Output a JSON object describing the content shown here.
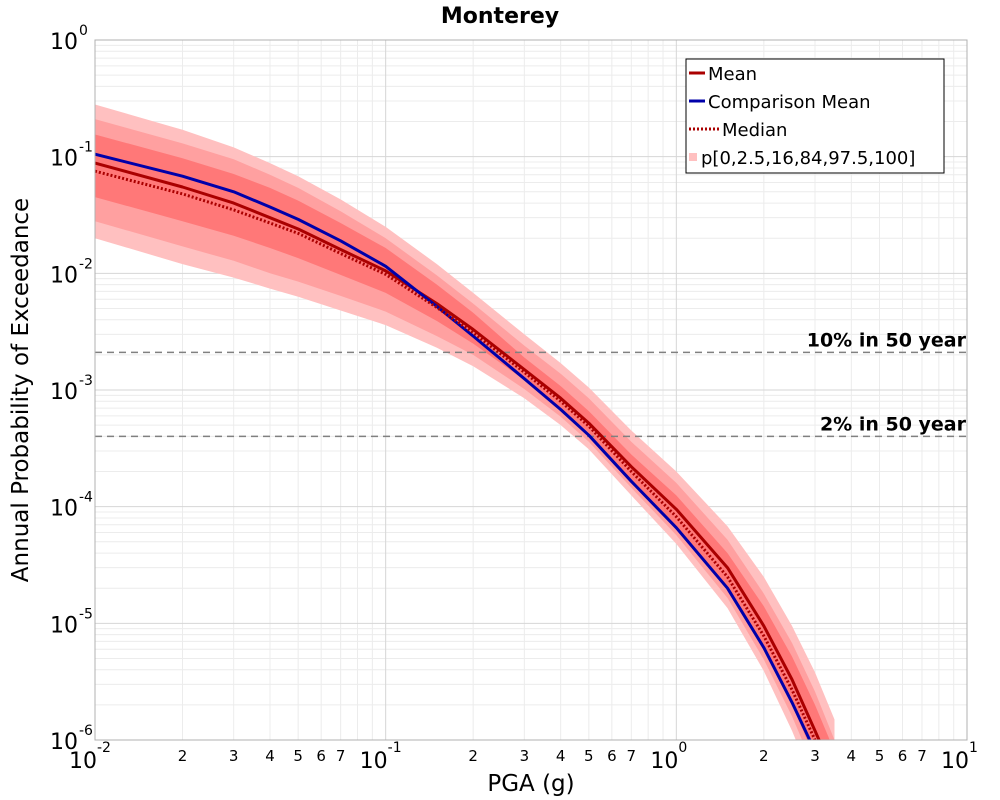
{
  "chart_data": {
    "type": "line",
    "title": "Monterey",
    "xlabel": "PGA (g)",
    "ylabel": "Annual Probability of Exceedance",
    "xscale": "log",
    "yscale": "log",
    "xlim": [
      0.01,
      10
    ],
    "ylim": [
      1e-06,
      1
    ],
    "grid": true,
    "legend_position": "top-right",
    "x_major_ticks": [
      {
        "value": 0.01,
        "base": "10",
        "exp": "-2"
      },
      {
        "value": 0.1,
        "base": "10",
        "exp": "-1"
      },
      {
        "value": 1,
        "base": "10",
        "exp": "0"
      },
      {
        "value": 10,
        "base": "10",
        "exp": "1"
      }
    ],
    "x_minor_tick_labels": [
      "2",
      "3",
      "4",
      "5",
      "6",
      "7"
    ],
    "y_major_ticks": [
      {
        "value": 1,
        "base": "10",
        "exp": "0"
      },
      {
        "value": 0.1,
        "base": "10",
        "exp": "-1"
      },
      {
        "value": 0.01,
        "base": "10",
        "exp": "-2"
      },
      {
        "value": 0.001,
        "base": "10",
        "exp": "-3"
      },
      {
        "value": 0.0001,
        "base": "10",
        "exp": "-4"
      },
      {
        "value": 1e-05,
        "base": "10",
        "exp": "-5"
      },
      {
        "value": 1e-06,
        "base": "10",
        "exp": "-6"
      }
    ],
    "x": [
      0.01,
      0.02,
      0.03,
      0.04,
      0.05,
      0.07,
      0.1,
      0.15,
      0.2,
      0.3,
      0.4,
      0.5,
      0.7,
      1.0,
      1.5,
      2.0,
      2.5,
      3.0,
      3.5
    ],
    "series": [
      {
        "name": "Mean",
        "color": "#aa0000",
        "style": "solid",
        "values": [
          0.088,
          0.055,
          0.04,
          0.03,
          0.024,
          0.016,
          0.0105,
          0.0055,
          0.0033,
          0.0015,
          0.00085,
          0.00052,
          0.00022,
          9.5e-05,
          3e-05,
          9.5e-06,
          3.3e-06,
          1.2e-06,
          5e-07
        ]
      },
      {
        "name": "Comparison Mean",
        "color": "#0000aa",
        "style": "solid",
        "values": [
          0.105,
          0.068,
          0.05,
          0.037,
          0.029,
          0.019,
          0.0115,
          0.0052,
          0.0029,
          0.00125,
          0.00068,
          0.00041,
          0.000165,
          6.6e-05,
          2e-05,
          6.2e-06,
          2.1e-06,
          8e-07,
          3e-07
        ]
      },
      {
        "name": "Median",
        "color": "#aa0000",
        "style": "dotted",
        "values": [
          0.075,
          0.048,
          0.035,
          0.027,
          0.022,
          0.0148,
          0.0098,
          0.0051,
          0.0031,
          0.00142,
          0.0008,
          0.00049,
          0.0002,
          8.2e-05,
          2.5e-05,
          7.8e-06,
          2.7e-06,
          1e-06,
          4e-07
        ]
      }
    ],
    "bands": {
      "name": "p[0,2.5,16,84,97.5,100]",
      "outer": {
        "color": "#ffc0c0",
        "lower": [
          0.02,
          0.012,
          0.0092,
          0.0074,
          0.0063,
          0.0048,
          0.0036,
          0.0023,
          0.0016,
          0.00085,
          0.0005,
          0.00031,
          0.000125,
          4.8e-05,
          1.35e-05,
          3.9e-06,
          1.2e-06,
          4e-07,
          1.4e-07
        ],
        "upper": [
          0.28,
          0.17,
          0.12,
          0.088,
          0.068,
          0.043,
          0.025,
          0.012,
          0.0068,
          0.003,
          0.0017,
          0.00105,
          0.00045,
          0.0002,
          6.8e-05,
          2.5e-05,
          9.5e-06,
          3.8e-06,
          1.5e-06
        ]
      },
      "mid": {
        "color": "#ffa0a0",
        "lower": [
          0.028,
          0.017,
          0.0128,
          0.01,
          0.0085,
          0.0064,
          0.0047,
          0.0029,
          0.002,
          0.00102,
          0.00059,
          0.00036,
          0.000145,
          5.7e-05,
          1.65e-05,
          4.9e-06,
          1.6e-06,
          5.5e-07,
          2e-07
        ],
        "upper": [
          0.21,
          0.13,
          0.095,
          0.07,
          0.054,
          0.034,
          0.02,
          0.0096,
          0.0055,
          0.0024,
          0.00138,
          0.00085,
          0.00036,
          0.00016,
          5.2e-05,
          1.8e-05,
          6.8e-06,
          2.6e-06,
          1e-06
        ]
      },
      "inner": {
        "color": "#ff7878",
        "lower": [
          0.045,
          0.028,
          0.021,
          0.0165,
          0.0135,
          0.0097,
          0.0068,
          0.0039,
          0.0025,
          0.00122,
          0.0007,
          0.00043,
          0.00017,
          6.9e-05,
          2e-05,
          6.1e-06,
          2e-06,
          7e-07,
          2.6e-07
        ],
        "upper": [
          0.155,
          0.097,
          0.071,
          0.054,
          0.042,
          0.027,
          0.0165,
          0.008,
          0.0046,
          0.0019,
          0.00108,
          0.00066,
          0.00028,
          0.000125,
          4e-05,
          1.4e-05,
          5.2e-06,
          2e-06,
          8e-07
        ]
      }
    },
    "reference_lines": [
      {
        "label": "10% in 50 year",
        "y": 0.0021
      },
      {
        "label": "2% in 50 year",
        "y": 0.0004
      }
    ]
  }
}
